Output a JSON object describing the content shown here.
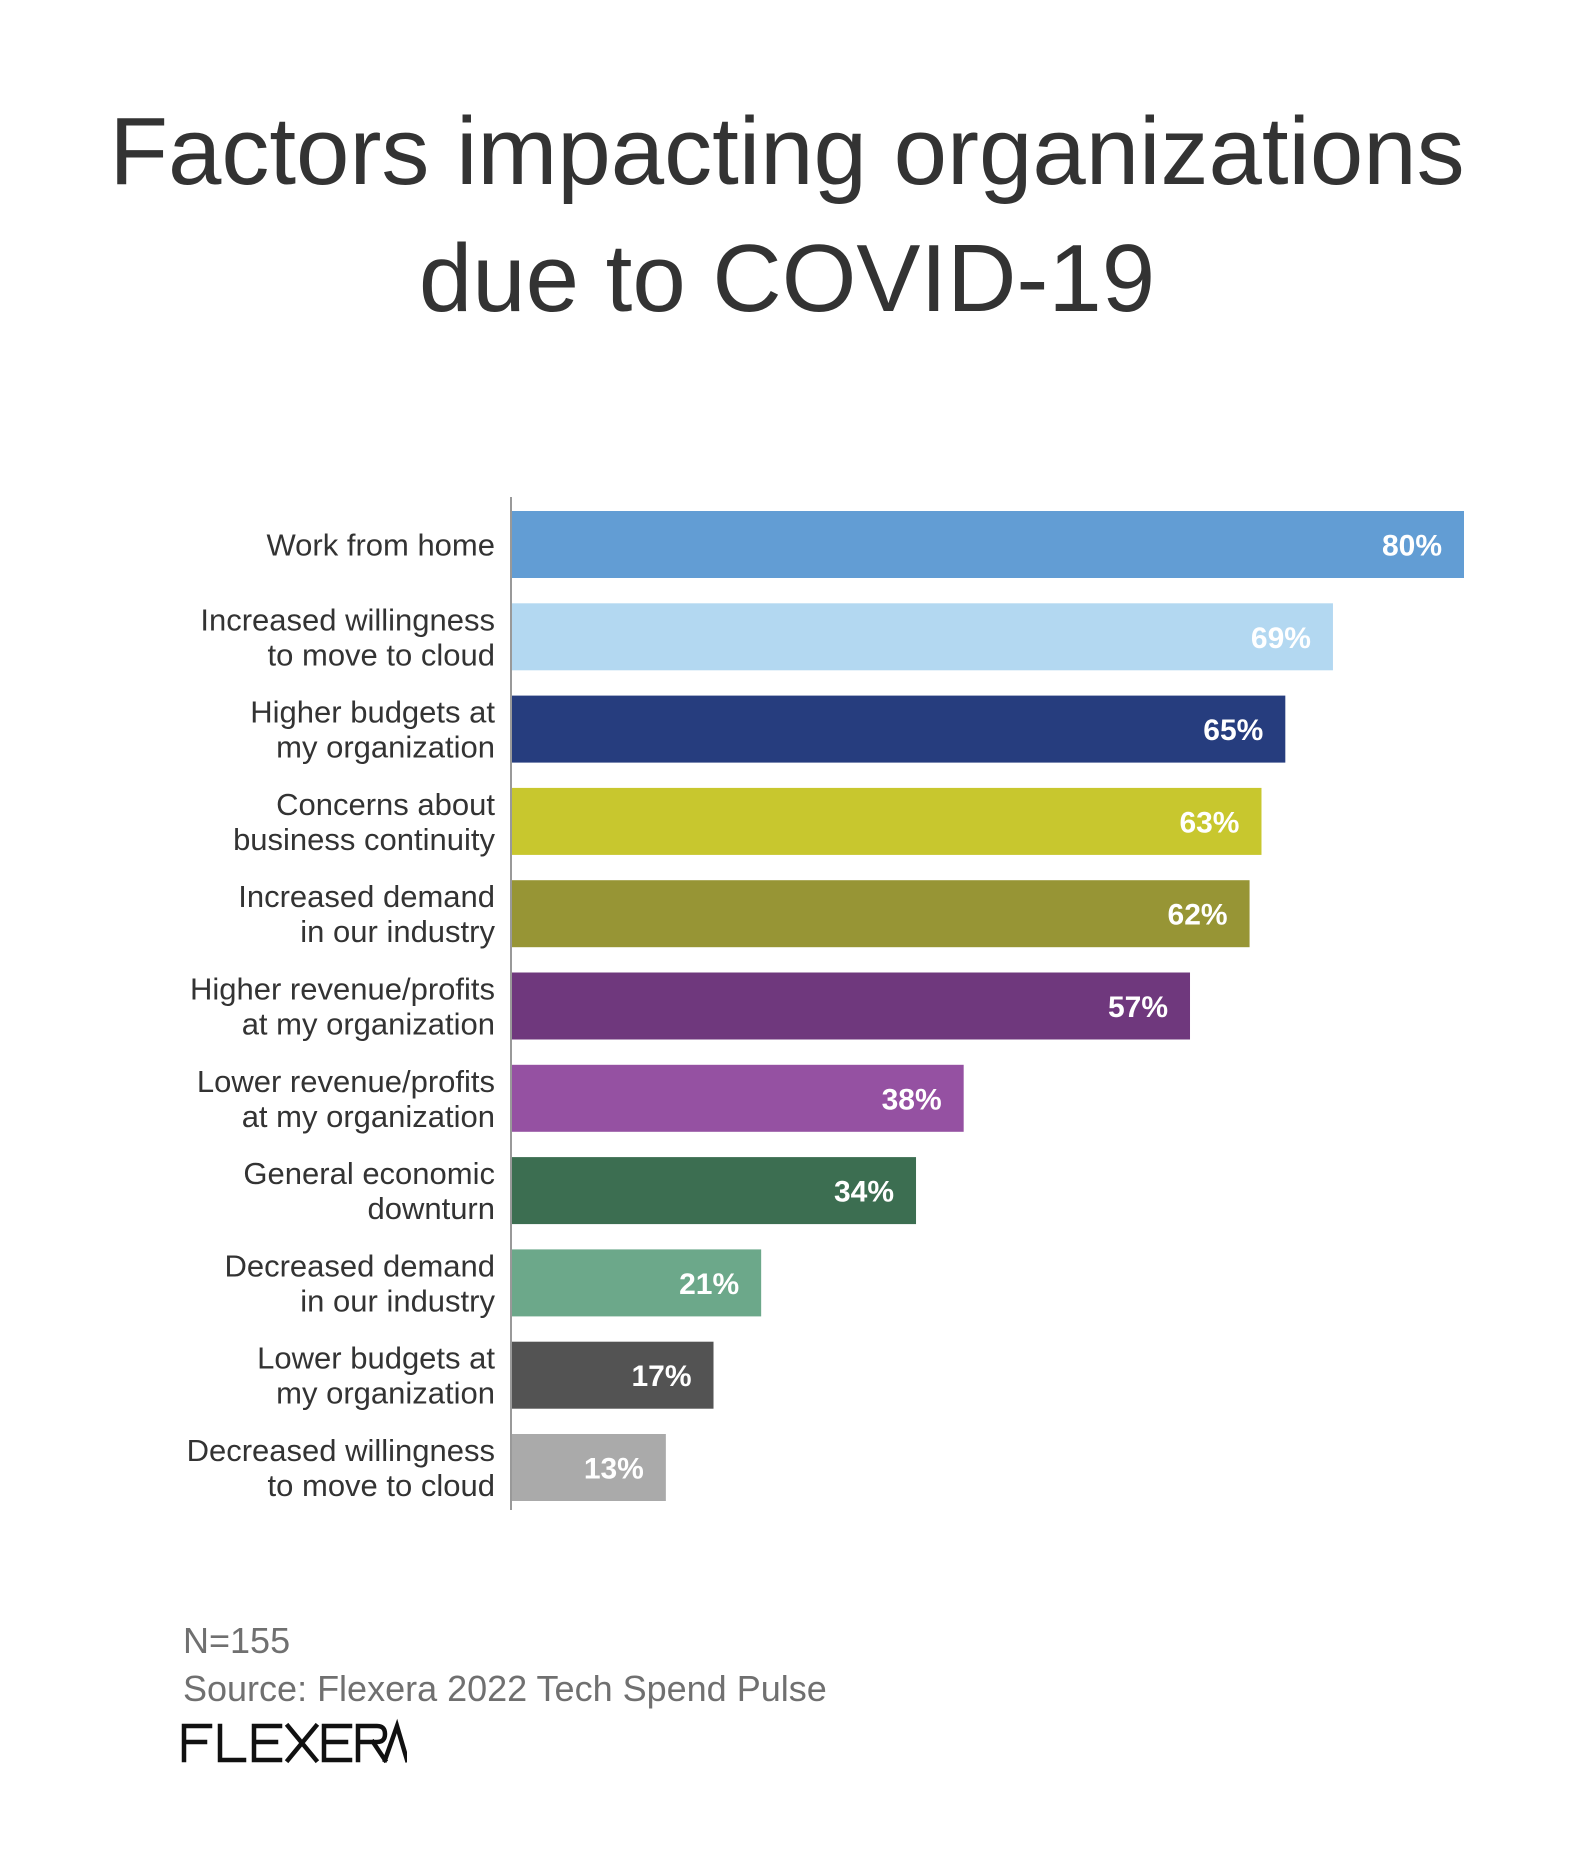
{
  "title_lines": [
    "Factors impacting organizations",
    "due to COVID-19"
  ],
  "chart_data": {
    "type": "bar",
    "orientation": "horizontal",
    "categories": [
      [
        "Work from home"
      ],
      [
        "Increased willingness",
        "to move to cloud"
      ],
      [
        "Higher budgets at",
        "my organization"
      ],
      [
        "Concerns about",
        "business continuity"
      ],
      [
        "Increased demand",
        "in our industry"
      ],
      [
        "Higher revenue/profits",
        "at my organization"
      ],
      [
        "Lower revenue/profits",
        "at my organization"
      ],
      [
        "General economic",
        "downturn"
      ],
      [
        "Decreased demand",
        "in our industry"
      ],
      [
        "Lower budgets at",
        "my organization"
      ],
      [
        "Decreased willingness",
        "to move to cloud"
      ]
    ],
    "values": [
      80,
      69,
      65,
      63,
      62,
      57,
      38,
      34,
      21,
      17,
      13
    ],
    "value_labels": [
      "80%",
      "69%",
      "65%",
      "63%",
      "62%",
      "57%",
      "38%",
      "34%",
      "21%",
      "17%",
      "13%"
    ],
    "colors": [
      "#629dd4",
      "#b3d8f1",
      "#263d7e",
      "#c8c72e",
      "#979535",
      "#6f387d",
      "#9551a2",
      "#3c6e51",
      "#6ca88a",
      "#535353",
      "#aaaaaa"
    ],
    "xlim": [
      0,
      80
    ],
    "grid": false,
    "legend": "none"
  },
  "footnote": {
    "sample": "N=155",
    "source": "Source: Flexera 2022 Tech Spend Pulse"
  },
  "logo": {
    "text": "FLEXERA",
    "color": "#111111"
  }
}
